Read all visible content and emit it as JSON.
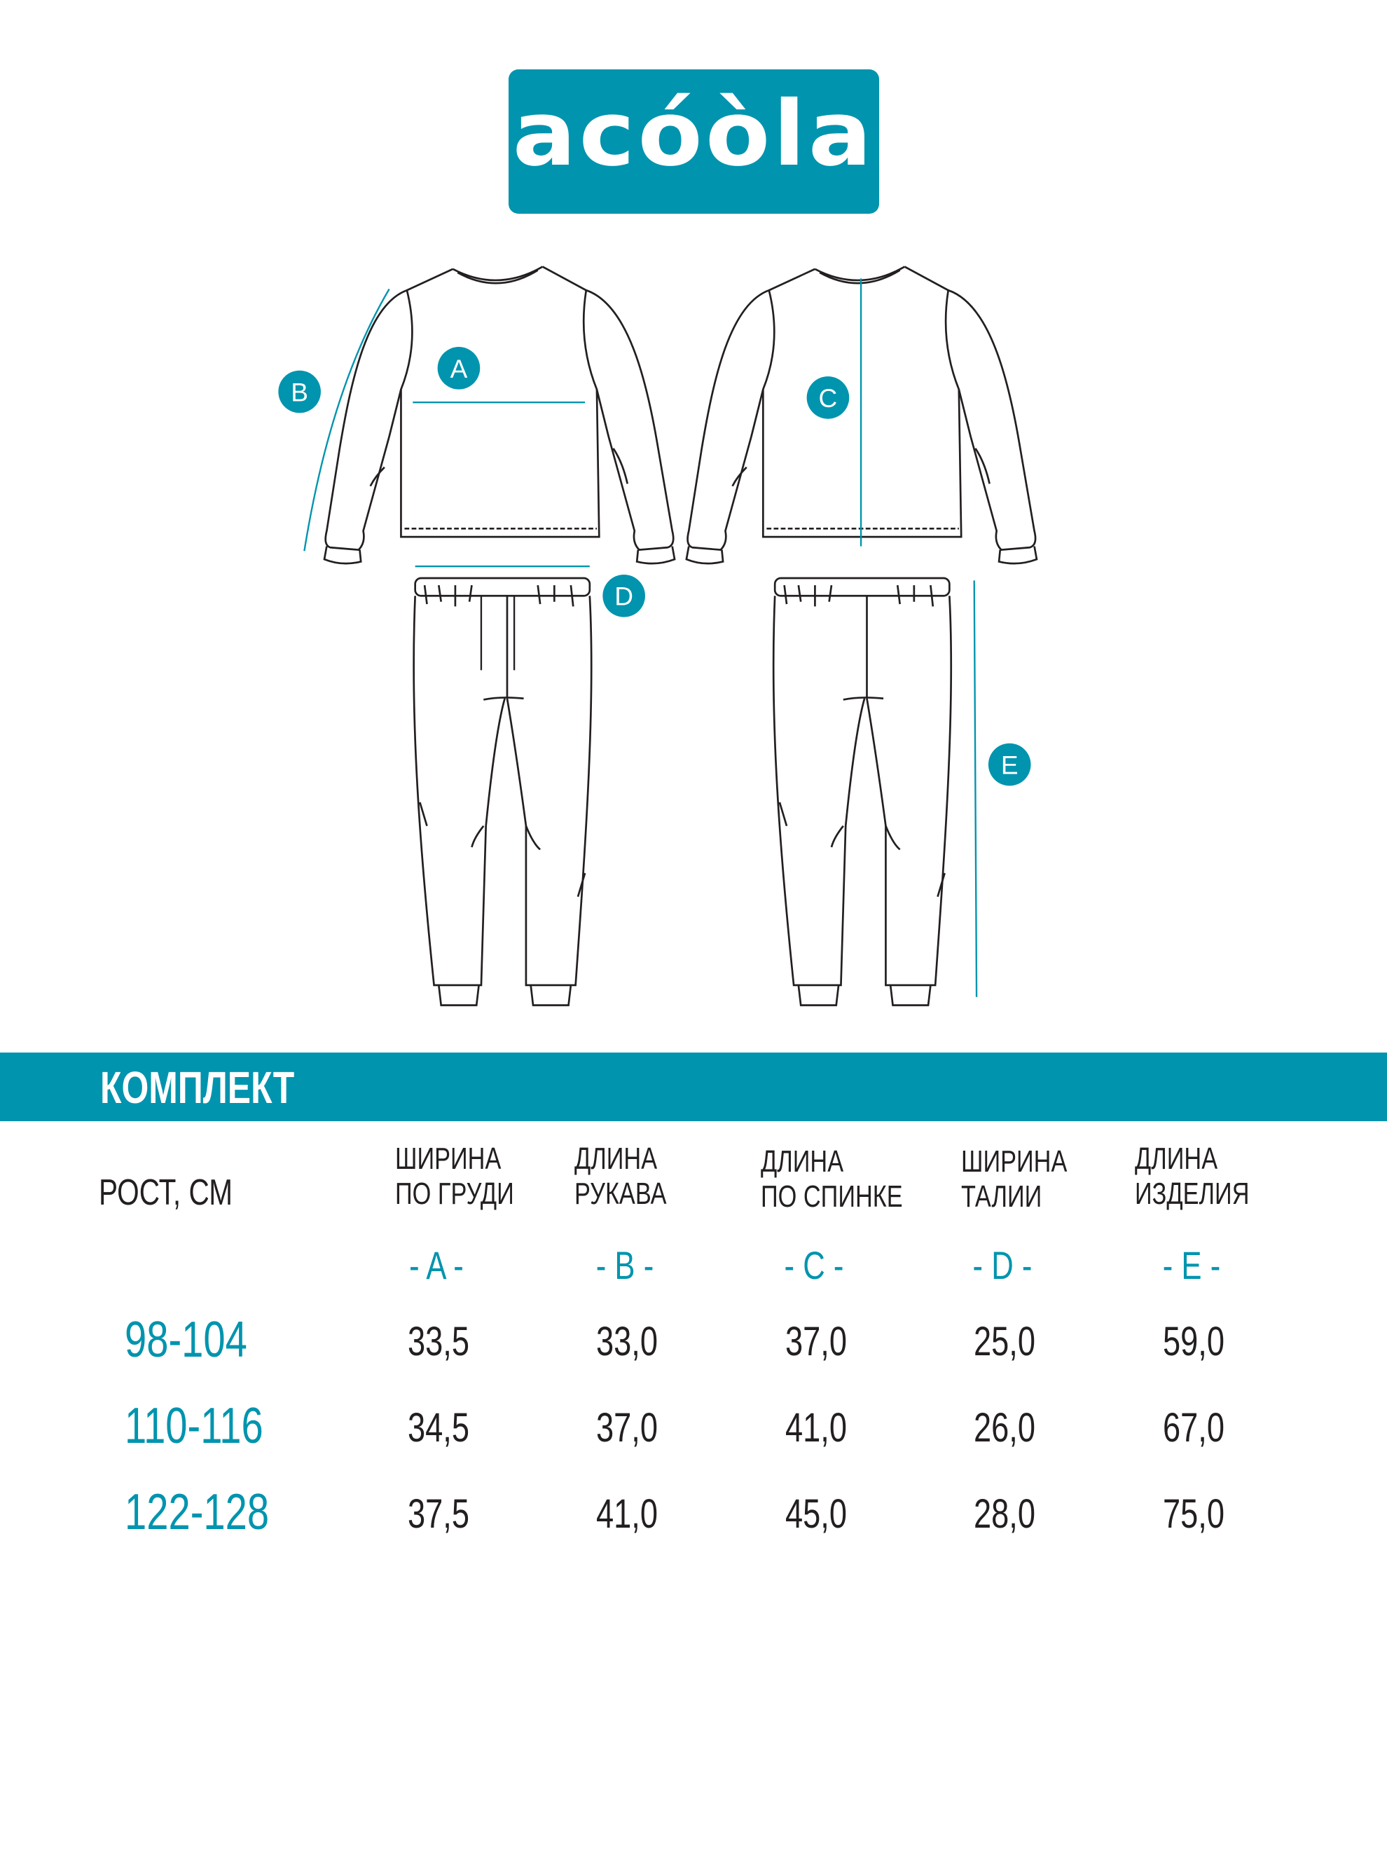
{
  "brand": {
    "logo_text": "acóòla",
    "color": "#0094ae"
  },
  "diagram": {
    "labels": [
      "A",
      "B",
      "C",
      "D",
      "E"
    ]
  },
  "section": {
    "title": "КОМПЛЕКТ"
  },
  "table": {
    "row_header": "РОСТ, СМ",
    "columns": [
      {
        "line1": "ШИРИНА",
        "line2": "ПО ГРУДИ",
        "code": "- A -"
      },
      {
        "line1": "ДЛИНА",
        "line2": "РУКАВА",
        "code": "- B -"
      },
      {
        "line1": "ДЛИНА",
        "line2": "ПО СПИНКЕ",
        "code": "- C -"
      },
      {
        "line1": "ШИРИНА",
        "line2": "ТАЛИИ",
        "code": "- D -"
      },
      {
        "line1": "ДЛИНА",
        "line2": "ИЗДЕЛИЯ",
        "code": "- E -"
      }
    ],
    "rows": [
      {
        "size": "98-104",
        "values": [
          "33,5",
          "33,0",
          "37,0",
          "25,0",
          "59,0"
        ]
      },
      {
        "size": "110-116",
        "values": [
          "34,5",
          "37,0",
          "41,0",
          "26,0",
          "67,0"
        ]
      },
      {
        "size": "122-128",
        "values": [
          "37,5",
          "41,0",
          "45,0",
          "28,0",
          "75,0"
        ]
      }
    ]
  }
}
